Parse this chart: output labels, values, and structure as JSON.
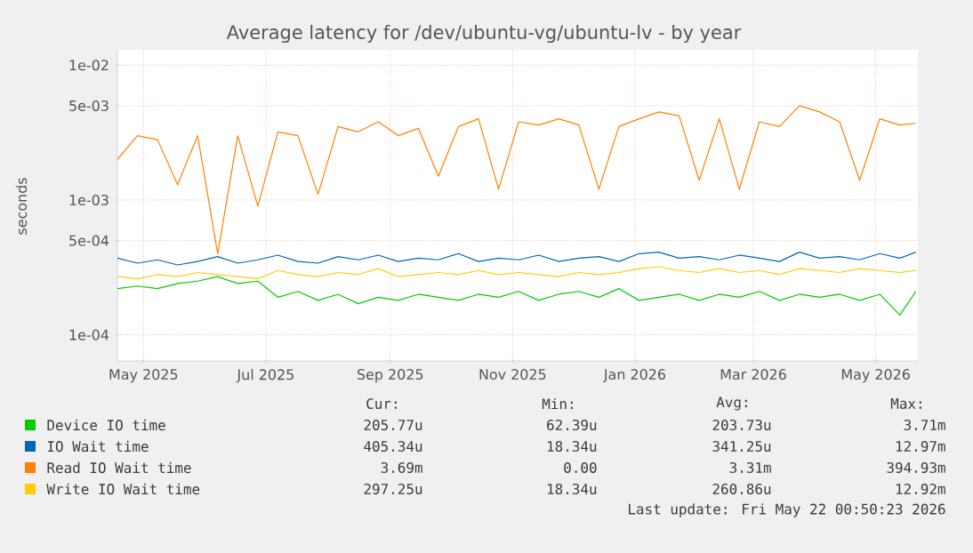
{
  "chart_data": {
    "type": "line",
    "title": "Average latency for /dev/ubuntu-vg/ubuntu-lv - by year",
    "ylabel": "seconds",
    "log": "y",
    "grid": true,
    "legend": "bottom",
    "xlim": [
      "2025-04-18",
      "2026-05-22"
    ],
    "xticks": [
      {
        "value": "2025-05-01",
        "label": "May 2025"
      },
      {
        "value": "2025-07-01",
        "label": "Jul 2025"
      },
      {
        "value": "2025-09-01",
        "label": "Sep 2025"
      },
      {
        "value": "2025-11-01",
        "label": "Nov 2025"
      },
      {
        "value": "2026-01-01",
        "label": "Jan 2026"
      },
      {
        "value": "2026-03-01",
        "label": "Mar 2026"
      },
      {
        "value": "2026-05-01",
        "label": "May 2026"
      }
    ],
    "ylim": [
      6.4e-05,
      0.013
    ],
    "yticks": [
      {
        "value": 0.0001,
        "label": "1e-04"
      },
      {
        "value": 0.0005,
        "label": "5e-04"
      },
      {
        "value": 0.001,
        "label": "1e-03"
      },
      {
        "value": 0.005,
        "label": "5e-03"
      },
      {
        "value": 0.01,
        "label": "1e-02"
      }
    ],
    "x": [
      "2025-04-18",
      "2025-04-28",
      "2025-05-08",
      "2025-05-18",
      "2025-05-28",
      "2025-06-07",
      "2025-06-17",
      "2025-06-27",
      "2025-07-07",
      "2025-07-17",
      "2025-07-27",
      "2025-08-06",
      "2025-08-16",
      "2025-08-26",
      "2025-09-05",
      "2025-09-15",
      "2025-09-25",
      "2025-10-05",
      "2025-10-15",
      "2025-10-25",
      "2025-11-04",
      "2025-11-14",
      "2025-11-24",
      "2025-12-04",
      "2025-12-14",
      "2025-12-24",
      "2026-01-03",
      "2026-01-13",
      "2026-01-23",
      "2026-02-02",
      "2026-02-12",
      "2026-02-22",
      "2026-03-04",
      "2026-03-14",
      "2026-03-24",
      "2026-04-03",
      "2026-04-13",
      "2026-04-23",
      "2026-05-03",
      "2026-05-13",
      "2026-05-21"
    ],
    "series": [
      {
        "name": "Device IO time",
        "color": "#00cc00",
        "values": [
          0.00022,
          0.00023,
          0.00022,
          0.00024,
          0.00025,
          0.00027,
          0.00024,
          0.00025,
          0.00019,
          0.00021,
          0.00018,
          0.0002,
          0.00017,
          0.00019,
          0.00018,
          0.0002,
          0.00019,
          0.00018,
          0.0002,
          0.00019,
          0.00021,
          0.00018,
          0.0002,
          0.00021,
          0.00019,
          0.00022,
          0.00018,
          0.00019,
          0.0002,
          0.00018,
          0.0002,
          0.00019,
          0.00021,
          0.00018,
          0.0002,
          0.00019,
          0.0002,
          0.00018,
          0.0002,
          0.00014,
          0.00021
        ]
      },
      {
        "name": "IO Wait time",
        "color": "#0066b3",
        "values": [
          0.00037,
          0.00034,
          0.00036,
          0.00033,
          0.00035,
          0.00038,
          0.00034,
          0.00036,
          0.00039,
          0.00035,
          0.00034,
          0.00038,
          0.00036,
          0.00039,
          0.00035,
          0.00037,
          0.00036,
          0.0004,
          0.00035,
          0.00037,
          0.00036,
          0.00039,
          0.00035,
          0.00037,
          0.00038,
          0.00035,
          0.0004,
          0.00041,
          0.00037,
          0.00038,
          0.00036,
          0.00039,
          0.00037,
          0.00035,
          0.00041,
          0.00037,
          0.00038,
          0.00036,
          0.0004,
          0.00037,
          0.00041
        ]
      },
      {
        "name": "Read IO Wait time",
        "color": "#ff8000",
        "values": [
          0.002,
          0.003,
          0.0028,
          0.0013,
          0.003,
          0.0004,
          0.003,
          0.0009,
          0.0032,
          0.003,
          0.0011,
          0.0035,
          0.0032,
          0.0038,
          0.003,
          0.0034,
          0.0015,
          0.0035,
          0.004,
          0.0012,
          0.0038,
          0.0036,
          0.004,
          0.0036,
          0.0012,
          0.0035,
          0.004,
          0.0045,
          0.0042,
          0.0014,
          0.004,
          0.0012,
          0.0038,
          0.0035,
          0.005,
          0.0045,
          0.0038,
          0.0014,
          0.004,
          0.0036,
          0.0037
        ]
      },
      {
        "name": "Write IO Wait time",
        "color": "#ffcc00",
        "values": [
          0.00027,
          0.00026,
          0.00028,
          0.00027,
          0.00029,
          0.00028,
          0.00027,
          0.00026,
          0.0003,
          0.00028,
          0.00027,
          0.00029,
          0.00028,
          0.00031,
          0.00027,
          0.00028,
          0.00029,
          0.00028,
          0.0003,
          0.00028,
          0.00029,
          0.00028,
          0.00027,
          0.00029,
          0.00028,
          0.00029,
          0.00031,
          0.00032,
          0.0003,
          0.00029,
          0.00031,
          0.00029,
          0.0003,
          0.00028,
          0.00031,
          0.0003,
          0.00029,
          0.00031,
          0.0003,
          0.00029,
          0.0003
        ]
      }
    ],
    "annotations": [
      "Cur:",
      "Min:",
      "Avg:",
      "Max:",
      "205.77u",
      "62.39u",
      "203.73u",
      "3.71m",
      "405.34u",
      "18.34u",
      "341.25u",
      "12.97m",
      "3.69m",
      "0.00",
      "3.31m",
      "394.93m",
      "297.25u",
      "18.34u",
      "260.86u",
      "12.92m",
      "Last update: Fri May 22 00:50:23 2026"
    ]
  }
}
